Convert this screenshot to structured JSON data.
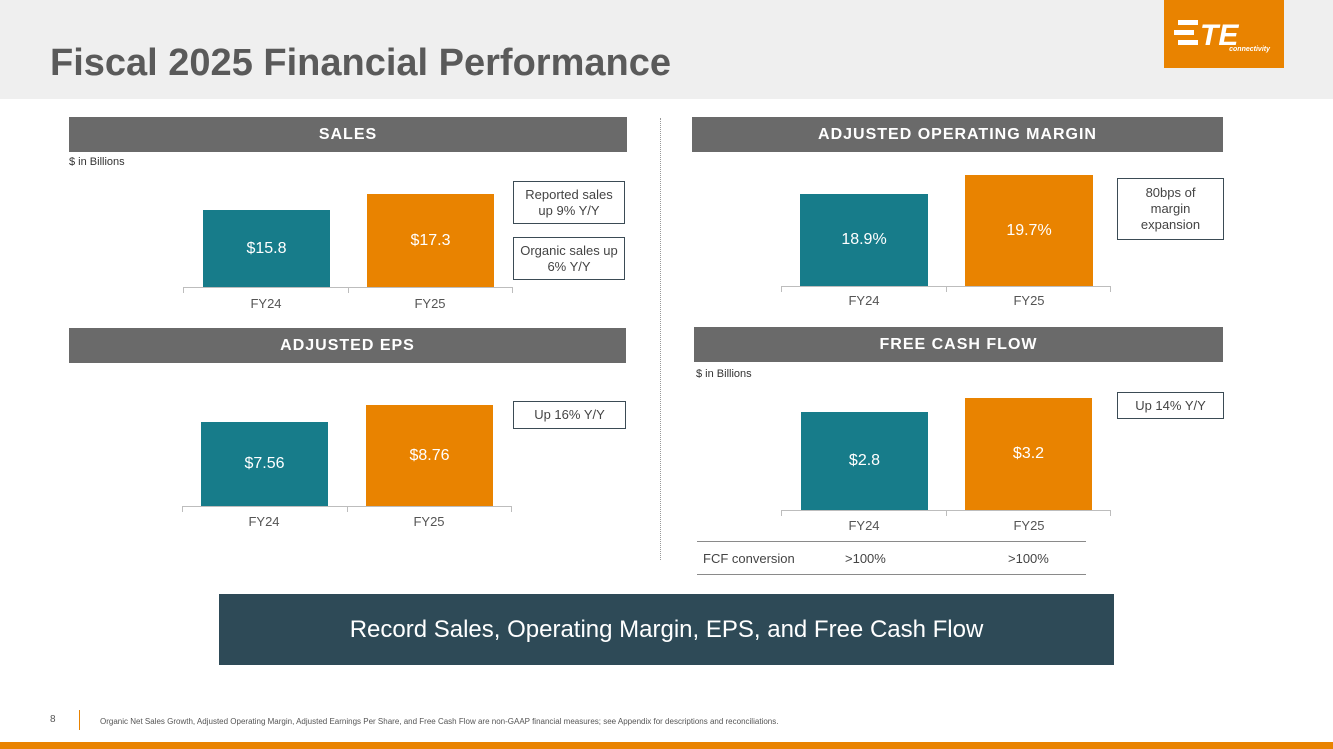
{
  "title": "Fiscal 2025 Financial Performance",
  "logo": {
    "text": "TE",
    "sub": "connectivity"
  },
  "colors": {
    "fy24": "#177c8a",
    "fy25": "#e98300",
    "header": "#6a6a6a",
    "banner": "#2e4a57"
  },
  "chart_data": [
    {
      "type": "bar",
      "title": "SALES",
      "unit": "$ in Billions",
      "categories": [
        "FY24",
        "FY25"
      ],
      "values": [
        15.8,
        17.3
      ],
      "labels": [
        "$15.8",
        "$17.3"
      ],
      "notes": [
        "Reported sales up 9% Y/Y",
        "Organic sales up 6% Y/Y"
      ]
    },
    {
      "type": "bar",
      "title": "ADJUSTED OPERATING MARGIN",
      "unit": "",
      "categories": [
        "FY24",
        "FY25"
      ],
      "values": [
        18.9,
        19.7
      ],
      "labels": [
        "18.9%",
        "19.7%"
      ],
      "notes": [
        "80bps of margin expansion"
      ]
    },
    {
      "type": "bar",
      "title": "ADJUSTED EPS",
      "unit": "",
      "categories": [
        "FY24",
        "FY25"
      ],
      "values": [
        7.56,
        8.76
      ],
      "labels": [
        "$7.56",
        "$8.76"
      ],
      "notes": [
        "Up 16% Y/Y"
      ]
    },
    {
      "type": "bar",
      "title": "FREE CASH FLOW",
      "unit": "$ in Billions",
      "categories": [
        "FY24",
        "FY25"
      ],
      "values": [
        2.8,
        3.2
      ],
      "labels": [
        "$2.8",
        "$3.2"
      ],
      "notes": [
        "Up 14% Y/Y"
      ]
    }
  ],
  "fcf_conversion": {
    "label": "FCF conversion",
    "fy24": ">100%",
    "fy25": ">100%"
  },
  "banner": "Record Sales, Operating Margin, EPS, and Free Cash Flow",
  "footer": {
    "page": "8",
    "note": "Organic Net Sales Growth, Adjusted Operating Margin, Adjusted Earnings Per Share, and Free Cash Flow are non-GAAP financial measures; see Appendix for descriptions and reconciliations."
  }
}
